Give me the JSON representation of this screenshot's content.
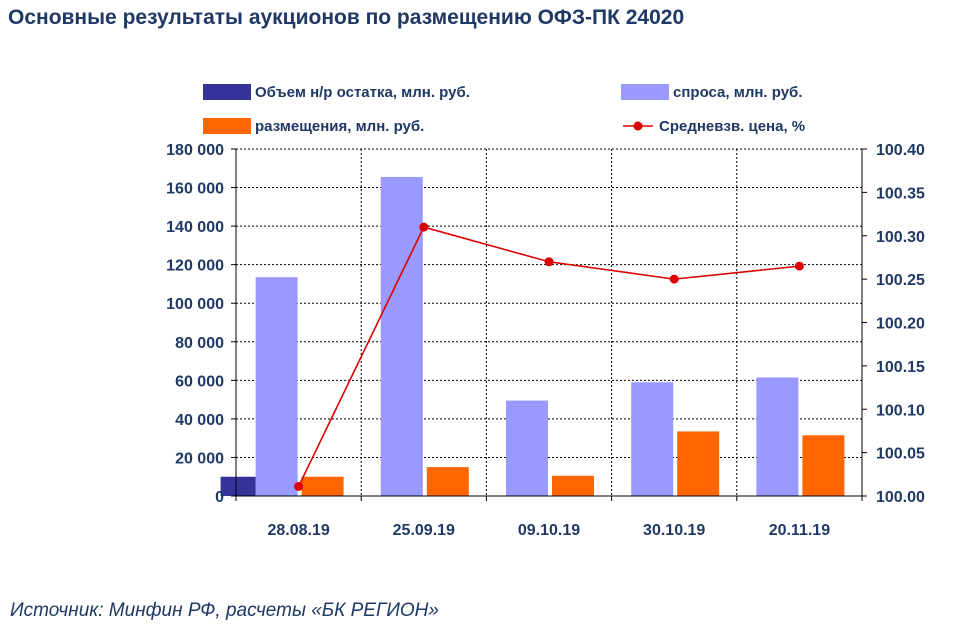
{
  "title": "Основные результаты аукционов по размещению ОФЗ-ПК 24020",
  "source": "Источник: Минфин РФ, расчеты «БК РЕГИОН»",
  "colors": {
    "remainder": "#333399",
    "demand": "#9999ff",
    "placement": "#ff6600",
    "price": "#dd0000",
    "text": "#1f3864"
  },
  "chart_data": {
    "type": "bar",
    "categories": [
      "28.08.19",
      "25.09.19",
      "09.10.19",
      "30.10.19",
      "20.11.19"
    ],
    "series": [
      {
        "name": "Объем н/р остатка, млн. руб.",
        "type": "bar",
        "axis": "left",
        "values": [
          10000,
          null,
          null,
          null,
          null
        ]
      },
      {
        "name": "спроса, млн. руб.",
        "type": "bar",
        "axis": "left",
        "values": [
          113500,
          165500,
          49500,
          59000,
          61500
        ]
      },
      {
        "name": "размещения, млн. руб.",
        "type": "bar",
        "axis": "left",
        "values": [
          10000,
          15000,
          10500,
          33500,
          31500
        ]
      },
      {
        "name": "Средневзв. цена, %",
        "type": "line",
        "axis": "right",
        "values": [
          100.011,
          100.31,
          100.27,
          100.25,
          100.265
        ]
      }
    ],
    "ylim_left": [
      0,
      180000
    ],
    "yticks_left": [
      "0",
      "20 000",
      "40 000",
      "60 000",
      "80 000",
      "100 000",
      "120 000",
      "140 000",
      "160 000",
      "180 000"
    ],
    "ylim_right": [
      100.0,
      100.4
    ],
    "yticks_right": [
      "100.00",
      "100.05",
      "100.10",
      "100.15",
      "100.20",
      "100.25",
      "100.30",
      "100.35",
      "100.40"
    ],
    "grid": true,
    "legend_position": "top"
  }
}
